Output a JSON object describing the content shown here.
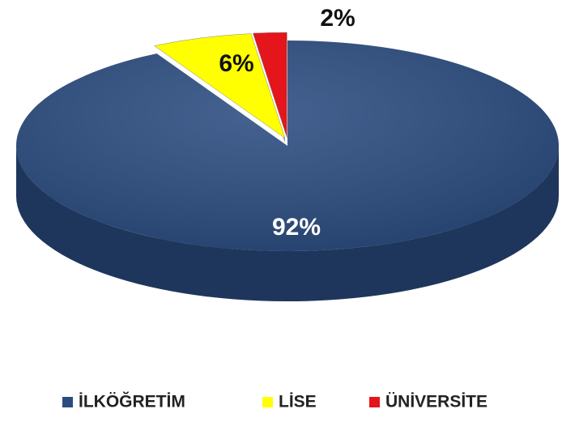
{
  "chart_data": {
    "type": "pie",
    "categories": [
      "İLKÖĞRETİM",
      "LİSE",
      "ÜNİVERSİTE"
    ],
    "values": [
      92,
      6,
      2
    ],
    "value_labels": [
      "92%",
      "6%",
      "2%"
    ],
    "colors": [
      "#2b4c80",
      "#ffff00",
      "#e4151b"
    ],
    "legend": "bottom"
  }
}
